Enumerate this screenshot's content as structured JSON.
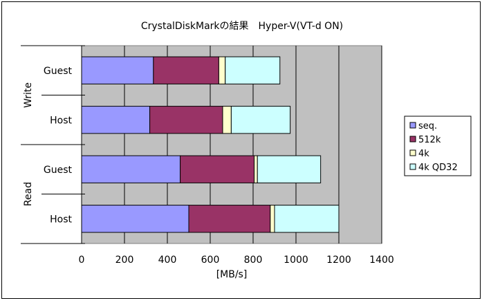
{
  "chart_data": {
    "type": "bar",
    "orientation": "horizontal",
    "stacked": true,
    "title": "CrystalDiskMarkの結果　Hyper-V(VT-d ON)",
    "xlabel": "[MB/s]",
    "xlim": [
      0,
      1400
    ],
    "xticks": [
      "0",
      "200",
      "400",
      "600",
      "800",
      "1000",
      "1200",
      "1400"
    ],
    "grid": true,
    "legend_position": "right",
    "groups": [
      {
        "label": "Write",
        "categories": [
          "Guest",
          "Host"
        ]
      },
      {
        "label": "Read",
        "categories": [
          "Guest",
          "Host"
        ]
      }
    ],
    "categories": [
      "Write Guest",
      "Write Host",
      "Read Guest",
      "Read Host"
    ],
    "series": [
      {
        "name": "seq.",
        "color": "#9999ff",
        "values": [
          335,
          318,
          460,
          500
        ]
      },
      {
        "name": "512k",
        "color": "#993366",
        "values": [
          305,
          340,
          345,
          380
        ]
      },
      {
        "name": "4k",
        "color": "#ffffcc",
        "values": [
          30,
          40,
          15,
          20
        ]
      },
      {
        "name": "4k QD32",
        "color": "#ccffff",
        "values": [
          255,
          275,
          295,
          300
        ]
      }
    ]
  }
}
